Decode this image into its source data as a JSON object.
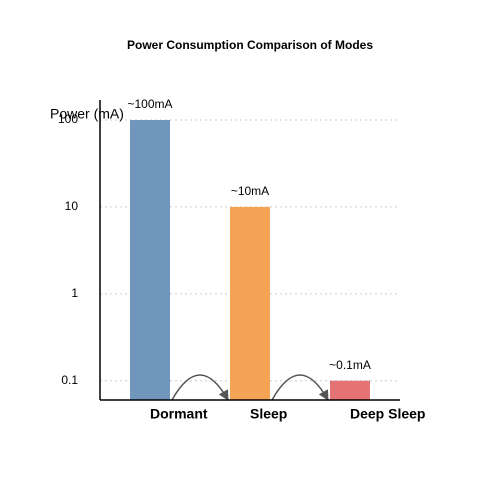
{
  "chart_data": {
    "type": "bar",
    "title": "Power Consumption Comparison of Modes",
    "y_label": "Power (mA)",
    "categories": [
      "Dormant",
      "Sleep",
      "Deep Sleep"
    ],
    "values": [
      100,
      10,
      0.1
    ],
    "value_labels": [
      "~100mA",
      "~10mA",
      "~0.1mA"
    ],
    "colors": [
      "#7096bb",
      "#f5a455",
      "#e57373"
    ],
    "log_scale": true,
    "ylim": [
      0.06,
      170
    ],
    "yticks": [
      0.1,
      1,
      10,
      100
    ],
    "grid": true
  }
}
